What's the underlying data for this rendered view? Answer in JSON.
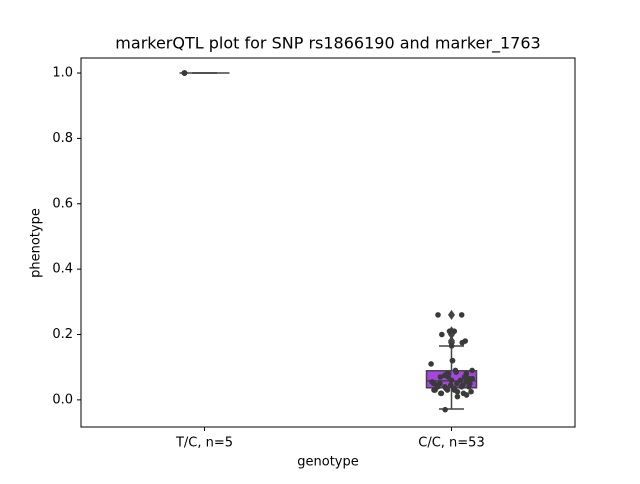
{
  "chart_data": {
    "type": "box",
    "title": "markerQTL plot for SNP rs1866190 and marker_1763",
    "xlabel": "genotype",
    "ylabel": "phenotype",
    "categories": [
      "T/C, n=5",
      "C/C, n=53"
    ],
    "boxes": [
      {
        "color": "#3fbf5f",
        "whislo": 1,
        "q1": 1,
        "med": 1,
        "q3": 1,
        "whishi": 1,
        "fliers": []
      },
      {
        "color": "#a845e0",
        "whislo": -0.028,
        "q1": 0.037,
        "med": 0.058,
        "q3": 0.089,
        "whishi": 0.165,
        "fliers": [
          0.26,
          0.21,
          0.2,
          0.18,
          0.175
        ]
      }
    ],
    "points": [
      [
        1,
        1,
        1,
        1,
        1
      ],
      [
        0.26,
        0.26,
        0.21,
        0.21,
        0.2,
        0.18,
        0.175,
        0.165,
        0.12,
        0.12,
        0.11,
        0.09,
        0.085,
        0.08,
        0.08,
        0.075,
        0.07,
        0.07,
        0.065,
        0.06,
        0.06,
        0.055,
        0.055,
        0.05,
        0.05,
        0.05,
        0.045,
        0.045,
        0.04,
        0.04,
        0.04,
        0.035,
        0.035,
        0.03,
        0.03,
        0.03,
        0.025,
        0.025,
        0.02,
        0.02,
        0.02,
        0.015,
        0.01,
        0.05,
        0.06,
        0.07,
        0.04,
        0.03,
        0.08,
        0.09,
        0.065,
        0.045,
        -0.03
      ]
    ],
    "point_color": "#3a3a3a",
    "ylim": [
      -0.083,
      1.046
    ],
    "yticks": [
      {
        "value": 0,
        "label": "0.0"
      },
      0.2,
      0.4,
      0.6,
      0.8,
      {
        "value": 1,
        "label": "1.0"
      }
    ]
  }
}
